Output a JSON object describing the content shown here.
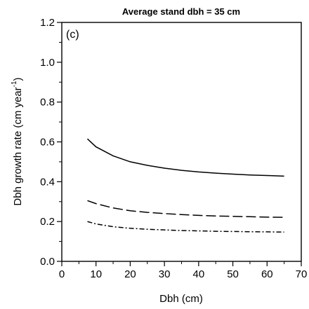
{
  "chart_data": {
    "type": "line",
    "title": "Average stand dbh = 35 cm",
    "panel_label": "(c)",
    "xlabel": "Dbh (cm)",
    "ylabel_main": "Dbh growth rate (cm year",
    "ylabel_sup": "-1",
    "ylabel_end": ")",
    "xlim": [
      0,
      70
    ],
    "ylim": [
      0.0,
      1.2
    ],
    "x_ticks": [
      0,
      10,
      20,
      30,
      40,
      50,
      60,
      70
    ],
    "y_ticks": [
      0.0,
      0.2,
      0.4,
      0.6,
      0.8,
      1.0,
      1.2
    ],
    "y_tick_labels": [
      "0.0",
      "0.2",
      "0.4",
      "0.6",
      "0.8",
      "1.0",
      "1.2"
    ],
    "grid": false,
    "series": [
      {
        "style": "solid",
        "x": [
          7.5,
          10,
          15,
          20,
          25,
          30,
          35,
          40,
          45,
          50,
          55,
          60,
          65
        ],
        "y": [
          0.615,
          0.575,
          0.53,
          0.5,
          0.482,
          0.468,
          0.457,
          0.449,
          0.443,
          0.438,
          0.434,
          0.431,
          0.428
        ]
      },
      {
        "style": "dashed",
        "x": [
          7.5,
          10,
          15,
          20,
          25,
          30,
          35,
          40,
          45,
          50,
          55,
          60,
          65
        ],
        "y": [
          0.305,
          0.29,
          0.268,
          0.254,
          0.246,
          0.24,
          0.235,
          0.231,
          0.228,
          0.226,
          0.224,
          0.222,
          0.221
        ]
      },
      {
        "style": "dash-dot",
        "x": [
          7.5,
          10,
          15,
          20,
          25,
          30,
          35,
          40,
          45,
          50,
          55,
          60,
          65
        ],
        "y": [
          0.2,
          0.188,
          0.174,
          0.166,
          0.161,
          0.158,
          0.155,
          0.153,
          0.151,
          0.15,
          0.149,
          0.148,
          0.147
        ]
      }
    ]
  }
}
